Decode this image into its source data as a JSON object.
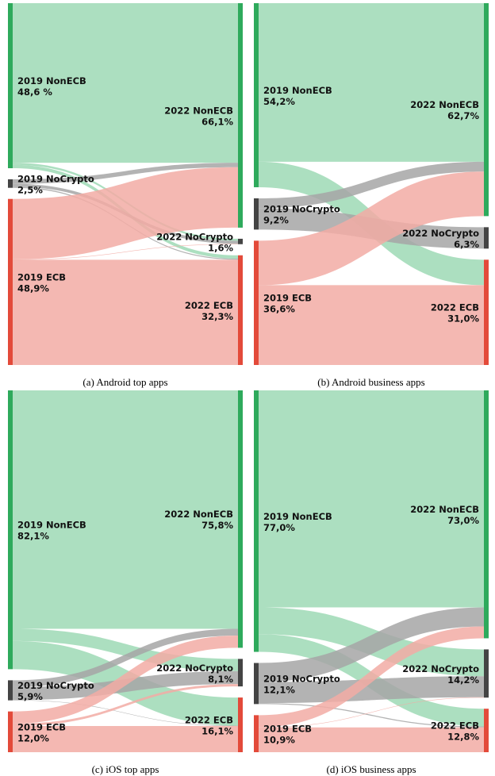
{
  "colors": {
    "NonECB": "#2eaa5c",
    "NoCrypto": "#444444",
    "ECB": "#e34a3a",
    "NonECB_flow": "#9ed9b5",
    "NoCrypto_flow": "#a6a6a6",
    "ECB_flow": "#f2aca4"
  },
  "chart_data": [
    {
      "type": "sankey",
      "caption": "(a) Android top apps",
      "left_nodes": [
        {
          "key": "NonECB",
          "name": "2019 NonECB",
          "pct": "48,6 %",
          "value": 48.6
        },
        {
          "key": "NoCrypto",
          "name": "2019 NoCrypto",
          "pct": "2,5%",
          "value": 2.5
        },
        {
          "key": "ECB",
          "name": "2019 ECB",
          "pct": "48,9%",
          "value": 48.9
        }
      ],
      "right_nodes": [
        {
          "key": "NonECB",
          "name": "2022 NonECB",
          "pct": "66,1%",
          "value": 66.1
        },
        {
          "key": "NoCrypto",
          "name": "2022 NoCrypto",
          "pct": "1,6%",
          "value": 1.6
        },
        {
          "key": "ECB",
          "name": "2022 ECB",
          "pct": "32,3%",
          "value": 32.3
        }
      ],
      "flows": [
        {
          "from": "NonECB",
          "to": "NonECB",
          "value": 47.0
        },
        {
          "from": "NonECB",
          "to": "NoCrypto",
          "value": 0.6
        },
        {
          "from": "NonECB",
          "to": "ECB",
          "value": 1.0
        },
        {
          "from": "NoCrypto",
          "to": "NonECB",
          "value": 1.3
        },
        {
          "from": "NoCrypto",
          "to": "NoCrypto",
          "value": 0.9
        },
        {
          "from": "NoCrypto",
          "to": "ECB",
          "value": 0.3
        },
        {
          "from": "ECB",
          "to": "NonECB",
          "value": 17.8
        },
        {
          "from": "ECB",
          "to": "NoCrypto",
          "value": 0.1
        },
        {
          "from": "ECB",
          "to": "ECB",
          "value": 31.0
        }
      ]
    },
    {
      "type": "sankey",
      "caption": "(b) Android business apps",
      "left_nodes": [
        {
          "key": "NonECB",
          "name": "2019 NonECB",
          "pct": "54,2%",
          "value": 54.2
        },
        {
          "key": "NoCrypto",
          "name": "2019 NoCrypto",
          "pct": "9,2%",
          "value": 9.2
        },
        {
          "key": "ECB",
          "name": "2019 ECB",
          "pct": "36,6%",
          "value": 36.6
        }
      ],
      "right_nodes": [
        {
          "key": "NonECB",
          "name": "2022 NonECB",
          "pct": "62,7%",
          "value": 62.7
        },
        {
          "key": "NoCrypto",
          "name": "2022 NoCrypto",
          "pct": "6,3%",
          "value": 6.3
        },
        {
          "key": "ECB",
          "name": "2022 ECB",
          "pct": "31,0%",
          "value": 31.0
        }
      ],
      "flows": [
        {
          "from": "NonECB",
          "to": "NonECB",
          "value": 46.7
        },
        {
          "from": "NonECB",
          "to": "NoCrypto",
          "value": 0.0
        },
        {
          "from": "NonECB",
          "to": "ECB",
          "value": 7.5
        },
        {
          "from": "NoCrypto",
          "to": "NonECB",
          "value": 2.9
        },
        {
          "from": "NoCrypto",
          "to": "NoCrypto",
          "value": 6.3
        },
        {
          "from": "NoCrypto",
          "to": "ECB",
          "value": 0.0
        },
        {
          "from": "ECB",
          "to": "NonECB",
          "value": 13.1
        },
        {
          "from": "ECB",
          "to": "NoCrypto",
          "value": 0.0
        },
        {
          "from": "ECB",
          "to": "ECB",
          "value": 23.5
        }
      ]
    },
    {
      "type": "sankey",
      "caption": "(c) iOS top apps",
      "left_nodes": [
        {
          "key": "NonECB",
          "name": "2019 NonECB",
          "pct": "82,1%",
          "value": 82.1
        },
        {
          "key": "NoCrypto",
          "name": "2019 NoCrypto",
          "pct": "5,9%",
          "value": 5.9
        },
        {
          "key": "ECB",
          "name": "2019 ECB",
          "pct": "12,0%",
          "value": 12.0
        }
      ],
      "right_nodes": [
        {
          "key": "NonECB",
          "name": "2022 NonECB",
          "pct": "75,8%",
          "value": 75.8
        },
        {
          "key": "NoCrypto",
          "name": "2022 NoCrypto",
          "pct": "8,1%",
          "value": 8.1
        },
        {
          "key": "ECB",
          "name": "2022 ECB",
          "pct": "16,1%",
          "value": 16.1
        }
      ],
      "flows": [
        {
          "from": "NonECB",
          "to": "NonECB",
          "value": 70.2
        },
        {
          "from": "NonECB",
          "to": "NoCrypto",
          "value": 3.6
        },
        {
          "from": "NonECB",
          "to": "ECB",
          "value": 8.3
        },
        {
          "from": "NoCrypto",
          "to": "NonECB",
          "value": 2.0
        },
        {
          "from": "NoCrypto",
          "to": "NoCrypto",
          "value": 3.8
        },
        {
          "from": "NoCrypto",
          "to": "ECB",
          "value": 0.1
        },
        {
          "from": "ECB",
          "to": "NonECB",
          "value": 3.6
        },
        {
          "from": "ECB",
          "to": "NoCrypto",
          "value": 0.7
        },
        {
          "from": "ECB",
          "to": "ECB",
          "value": 7.7
        }
      ]
    },
    {
      "type": "sankey",
      "caption": "(d) iOS business apps",
      "left_nodes": [
        {
          "key": "NonECB",
          "name": "2019 NonECB",
          "pct": "77,0%",
          "value": 77.0
        },
        {
          "key": "NoCrypto",
          "name": "2019 NoCrypto",
          "pct": "12,1%",
          "value": 12.1
        },
        {
          "key": "ECB",
          "name": "2019 ECB",
          "pct": "10,9%",
          "value": 10.9
        }
      ],
      "right_nodes": [
        {
          "key": "NonECB",
          "name": "2022 NonECB",
          "pct": "73,0%",
          "value": 73.0
        },
        {
          "key": "NoCrypto",
          "name": "2022 NoCrypto",
          "pct": "14,2%",
          "value": 14.2
        },
        {
          "key": "ECB",
          "name": "2022 ECB",
          "pct": "12,8%",
          "value": 12.8
        }
      ],
      "flows": [
        {
          "from": "NonECB",
          "to": "NonECB",
          "value": 63.9
        },
        {
          "from": "NonECB",
          "to": "NoCrypto",
          "value": 7.9
        },
        {
          "from": "NonECB",
          "to": "ECB",
          "value": 5.2
        },
        {
          "from": "NoCrypto",
          "to": "NonECB",
          "value": 5.6
        },
        {
          "from": "NoCrypto",
          "to": "NoCrypto",
          "value": 6.2
        },
        {
          "from": "NoCrypto",
          "to": "ECB",
          "value": 0.3
        },
        {
          "from": "ECB",
          "to": "NonECB",
          "value": 3.5
        },
        {
          "from": "ECB",
          "to": "NoCrypto",
          "value": 0.1
        },
        {
          "from": "ECB",
          "to": "ECB",
          "value": 7.3
        }
      ]
    }
  ]
}
